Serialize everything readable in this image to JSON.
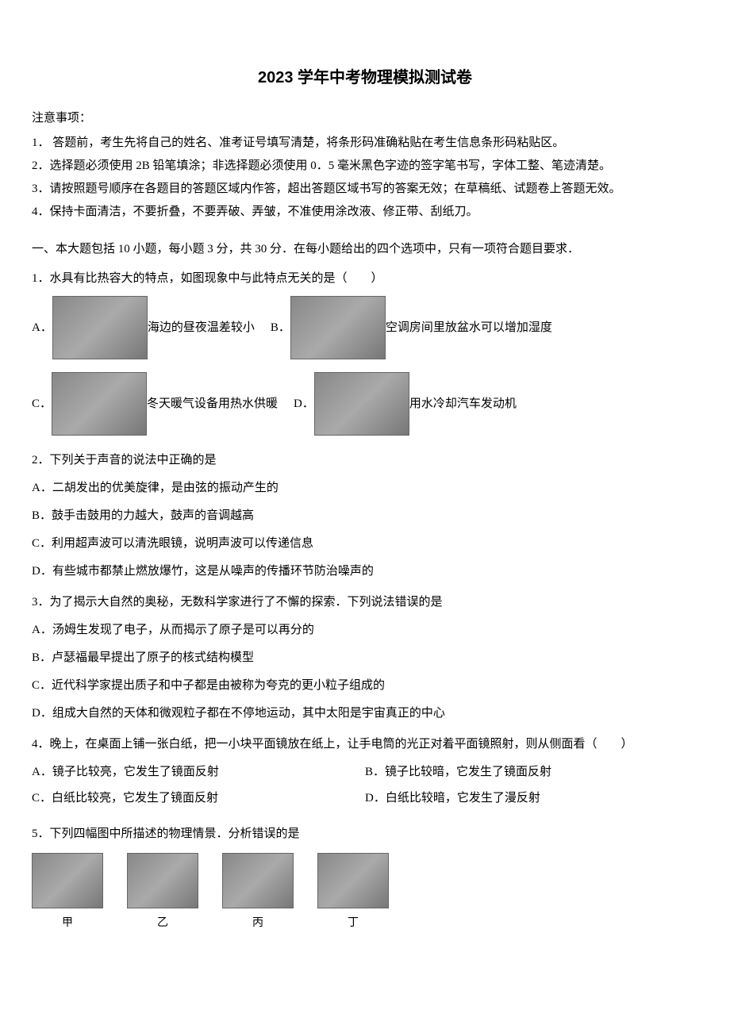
{
  "title": "2023 学年中考物理模拟测试卷",
  "notice": {
    "header": "注意事项：",
    "items": [
      "1．  答题前，考生先将自己的姓名、准考证号填写清楚，将条形码准确粘贴在考生信息条形码粘贴区。",
      "2．选择题必须使用 2B 铅笔填涂；非选择题必须使用 0．5 毫米黑色字迹的签字笔书写，字体工整、笔迹清楚。",
      "3．请按照题号顺序在各题目的答题区域内作答，超出答题区域书写的答案无效；在草稿纸、试题卷上答题无效。",
      "4．保持卡面清洁，不要折叠，不要弄破、弄皱，不准使用涂改液、修正带、刮纸刀。"
    ]
  },
  "section1": {
    "header": "一、本大题包括 10 小题，每小题 3 分，共 30 分．在每小题给出的四个选项中，只有一项符合题目要求．"
  },
  "q1": {
    "text": "1．水具有比热容大的特点，如图现象中与此特点无关的是（　　）",
    "opts": {
      "a_prefix": "A．",
      "a_text": "海边的昼夜温差较小",
      "b_prefix": "B．",
      "b_text": "空调房间里放盆水可以增加湿度",
      "c_prefix": "C．",
      "c_text": "冬天暖气设备用热水供暖",
      "d_prefix": "D．",
      "d_text": "用水冷却汽车发动机"
    }
  },
  "q2": {
    "text": "2．下列关于声音的说法中正确的是",
    "opts": {
      "a": "A．二胡发出的优美旋律，是由弦的振动产生的",
      "b": "B．鼓手击鼓用的力越大，鼓声的音调越高",
      "c": "C．利用超声波可以清洗眼镜，说明声波可以传递信息",
      "d": "D．有些城市都禁止燃放爆竹，这是从噪声的传播环节防治噪声的"
    }
  },
  "q3": {
    "text": "3．为了揭示大自然的奥秘，无数科学家进行了不懈的探索．下列说法错误的是",
    "opts": {
      "a": "A．汤姆生发现了电子，从而揭示了原子是可以再分的",
      "b": "B．卢瑟福最早提出了原子的核式结构模型",
      "c": "C．近代科学家提出质子和中子都是由被称为夸克的更小粒子组成的",
      "d": "D．组成大自然的天体和微观粒子都在不停地运动，其中太阳是宇宙真正的中心"
    }
  },
  "q4": {
    "text": "4．晚上，在桌面上铺一张白纸，把一小块平面镜放在纸上，让手电筒的光正对着平面镜照射，则从侧面看（　　）",
    "opts": {
      "a": "A．镜子比较亮，它发生了镜面反射",
      "b": "B．镜子比较暗，它发生了镜面反射",
      "c": "C．白纸比较亮，它发生了镜面反射",
      "d": "D．白纸比较暗，它发生了漫反射"
    }
  },
  "q5": {
    "text": "5．下列四幅图中所描述的物理情景．分析错误的是",
    "labels": {
      "a": "甲",
      "b": "乙",
      "c": "丙",
      "d": "丁"
    }
  }
}
